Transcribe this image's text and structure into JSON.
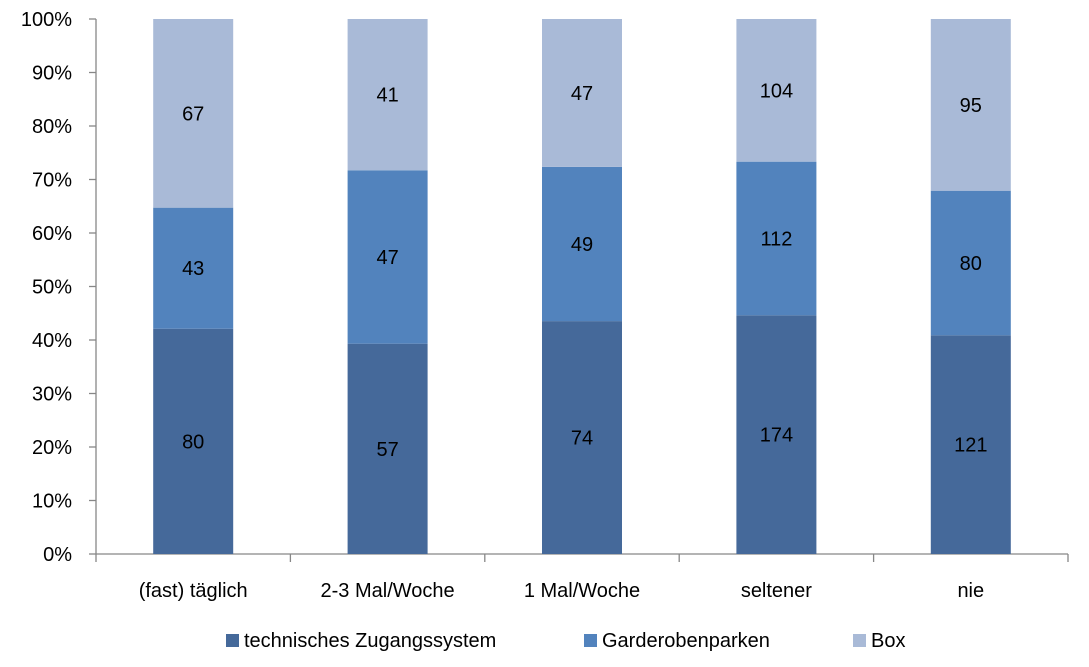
{
  "chart_data": {
    "type": "bar",
    "stacked": "percent",
    "categories": [
      "(fast) täglich",
      "2-3 Mal/Woche",
      "1 Mal/Woche",
      "seltener",
      "nie"
    ],
    "series": [
      {
        "name": "technisches Zugangssystem",
        "values": [
          80,
          57,
          74,
          174,
          121
        ],
        "color": "#45699a"
      },
      {
        "name": "Garderobenparken",
        "values": [
          43,
          47,
          49,
          112,
          80
        ],
        "color": "#5283bd"
      },
      {
        "name": "Box",
        "values": [
          67,
          41,
          47,
          104,
          95
        ],
        "color": "#a9bad7"
      }
    ],
    "y_ticks": [
      "0%",
      "10%",
      "20%",
      "30%",
      "40%",
      "50%",
      "60%",
      "70%",
      "80%",
      "90%",
      "100%"
    ],
    "ylim": [
      0,
      100
    ],
    "grid": false,
    "legend_position": "bottom"
  }
}
